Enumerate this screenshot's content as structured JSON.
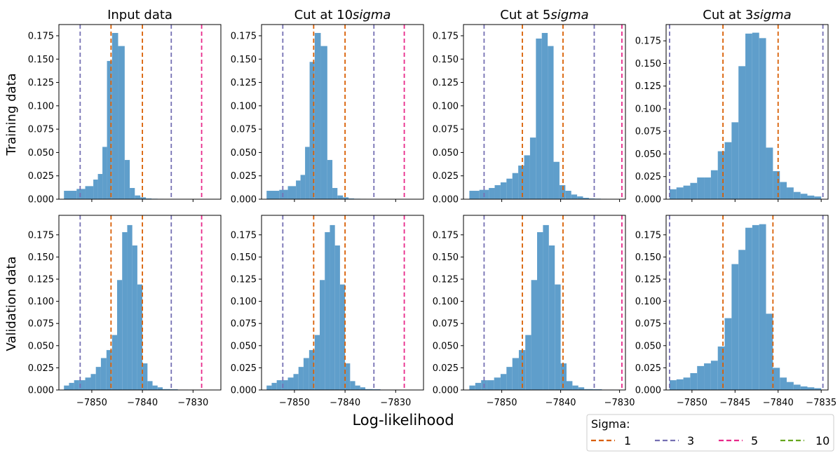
{
  "figure": {
    "xlabel": "Log-likelihood",
    "row_labels": [
      "Training data",
      "Validation data"
    ],
    "legend": {
      "title": "Sigma:",
      "entries": [
        {
          "label": "1",
          "color": "#d95f02"
        },
        {
          "label": "3",
          "color": "#7570b3"
        },
        {
          "label": "5",
          "color": "#e7298a"
        },
        {
          "label": "10",
          "color": "#66a61e"
        }
      ]
    },
    "bar_color": "#5f9ecb"
  },
  "chart_data": [
    {
      "type": "bar",
      "title_prefix": "Input data",
      "title_italic": "",
      "row": 0,
      "col": 0,
      "xlim": [
        -7856.5,
        -7824.5
      ],
      "ylim": [
        0,
        0.187
      ],
      "xticks": [
        -7850,
        -7840,
        -7830
      ],
      "xtick_labels": [
        "−7850",
        "−7840",
        "−7830"
      ],
      "show_xtick_labels": false,
      "yticks": [
        0,
        0.025,
        0.05,
        0.075,
        0.1,
        0.125,
        0.15,
        0.175
      ],
      "ytick_labels": [
        "0.000",
        "0.025",
        "0.050",
        "0.075",
        "0.100",
        "0.125",
        "0.150",
        "0.175"
      ],
      "bin_edges": [
        -7855.5,
        -7853.0,
        -7851.3,
        -7849.7,
        -7848.8,
        -7847.9,
        -7847.0,
        -7846.0,
        -7844.8,
        -7843.5,
        -7842.5,
        -7841.5,
        -7840.4,
        -7839.3,
        -7838.2,
        -7837.0,
        -7835.8,
        -7834.6,
        -7833.4,
        -7832.2,
        -7831.0,
        -7829.9
      ],
      "values": [
        0.009,
        0.011,
        0.014,
        0.021,
        0.027,
        0.056,
        0.148,
        0.178,
        0.164,
        0.042,
        0.012,
        0.004,
        0.002,
        0.0008,
        0.0005,
        0.0004,
        0.0003,
        0.0002,
        0.0001,
        0.0001,
        0.0001
      ],
      "sigma_lines": [
        {
          "sigma": "1",
          "x": -7846.2
        },
        {
          "sigma": "1",
          "x": -7840.0
        },
        {
          "sigma": "3",
          "x": -7852.3
        },
        {
          "sigma": "3",
          "x": -7834.3
        },
        {
          "sigma": "5",
          "x": -7828.3
        }
      ]
    },
    {
      "type": "bar",
      "title_prefix": "Cut at 10",
      "title_italic": "sigma",
      "row": 0,
      "col": 1,
      "xlim": [
        -7856.5,
        -7824.5
      ],
      "ylim": [
        0,
        0.187
      ],
      "xticks": [
        -7850,
        -7840,
        -7830
      ],
      "xtick_labels": [
        "−7850",
        "−7840",
        "−7830"
      ],
      "show_xtick_labels": false,
      "yticks": [
        0,
        0.025,
        0.05,
        0.075,
        0.1,
        0.125,
        0.15,
        0.175
      ],
      "ytick_labels": [
        "0.000",
        "0.025",
        "0.050",
        "0.075",
        "0.100",
        "0.125",
        "0.150",
        "0.175"
      ],
      "bin_edges": [
        -7855.5,
        -7853.0,
        -7851.3,
        -7849.7,
        -7848.8,
        -7847.9,
        -7847.0,
        -7846.0,
        -7844.8,
        -7843.5,
        -7842.5,
        -7841.5,
        -7840.4,
        -7839.3,
        -7838.2,
        -7837.0,
        -7835.8,
        -7834.6,
        -7833.4,
        -7832.2,
        -7831.0,
        -7829.9
      ],
      "values": [
        0.009,
        0.01,
        0.014,
        0.02,
        0.026,
        0.056,
        0.147,
        0.178,
        0.164,
        0.042,
        0.012,
        0.004,
        0.002,
        0.0008,
        0.0005,
        0.0004,
        0.0003,
        0.0002,
        0.0001,
        0.0001,
        0.0001
      ],
      "sigma_lines": [
        {
          "sigma": "1",
          "x": -7846.2
        },
        {
          "sigma": "1",
          "x": -7840.0
        },
        {
          "sigma": "3",
          "x": -7852.3
        },
        {
          "sigma": "3",
          "x": -7834.3
        },
        {
          "sigma": "5",
          "x": -7828.3
        }
      ]
    },
    {
      "type": "bar",
      "title_prefix": "Cut at 5",
      "title_italic": "sigma",
      "row": 0,
      "col": 2,
      "xlim": [
        -7856.5,
        -7829.0
      ],
      "ylim": [
        0,
        0.187
      ],
      "xticks": [
        -7850,
        -7840,
        -7830
      ],
      "xtick_labels": [
        "−7850",
        "−7840",
        "−7830"
      ],
      "show_xtick_labels": false,
      "yticks": [
        0,
        0.025,
        0.05,
        0.075,
        0.1,
        0.125,
        0.15,
        0.175
      ],
      "ytick_labels": [
        "0.000",
        "0.025",
        "0.050",
        "0.075",
        "0.100",
        "0.125",
        "0.150",
        "0.175"
      ],
      "bin_edges": [
        -7855.5,
        -7853.8,
        -7852.2,
        -7851.2,
        -7850.2,
        -7849.2,
        -7848.2,
        -7847.2,
        -7846.2,
        -7845.2,
        -7844.2,
        -7843.2,
        -7842.2,
        -7841.2,
        -7840.2,
        -7839.2,
        -7838.2,
        -7837.2,
        -7836.2,
        -7835.2,
        -7834.2,
        -7833.2,
        -7832.2,
        -7831.2,
        -7830.0
      ],
      "values": [
        0.009,
        0.01,
        0.012,
        0.015,
        0.018,
        0.022,
        0.028,
        0.036,
        0.047,
        0.066,
        0.172,
        0.178,
        0.164,
        0.04,
        0.015,
        0.009,
        0.005,
        0.003,
        0.0015,
        0.0008,
        0.0006,
        0.0004,
        0.0003,
        0.0002
      ],
      "sigma_lines": [
        {
          "sigma": "1",
          "x": -7846.5
        },
        {
          "sigma": "1",
          "x": -7839.6
        },
        {
          "sigma": "3",
          "x": -7853.0
        },
        {
          "sigma": "3",
          "x": -7834.3
        },
        {
          "sigma": "5",
          "x": -7829.6
        }
      ]
    },
    {
      "type": "bar",
      "title_prefix": "Cut at 3",
      "title_italic": "sigma",
      "row": 0,
      "col": 3,
      "xlim": [
        -7853.0,
        -7834.2
      ],
      "ylim": [
        0,
        0.193
      ],
      "xticks": [
        -7850,
        -7845,
        -7840,
        -7835
      ],
      "xtick_labels": [
        "−7850",
        "−7845",
        "−7840",
        "−7835"
      ],
      "show_xtick_labels": false,
      "yticks": [
        0,
        0.025,
        0.05,
        0.075,
        0.1,
        0.125,
        0.15,
        0.175
      ],
      "ytick_labels": [
        "0.000",
        "0.025",
        "0.050",
        "0.075",
        "0.100",
        "0.125",
        "0.150",
        "0.175"
      ],
      "bin_edges": [
        -7852.6,
        -7851.8,
        -7851.0,
        -7850.2,
        -7849.4,
        -7848.6,
        -7847.8,
        -7847.0,
        -7846.2,
        -7845.4,
        -7844.6,
        -7843.8,
        -7843.0,
        -7842.2,
        -7841.4,
        -7840.6,
        -7839.8,
        -7839.0,
        -7838.2,
        -7837.4,
        -7836.6,
        -7835.8,
        -7835.0
      ],
      "values": [
        0.011,
        0.013,
        0.015,
        0.018,
        0.024,
        0.024,
        0.032,
        0.053,
        0.063,
        0.085,
        0.147,
        0.183,
        0.184,
        0.178,
        0.057,
        0.031,
        0.019,
        0.013,
        0.008,
        0.006,
        0.004,
        0.003
      ],
      "sigma_lines": [
        {
          "sigma": "1",
          "x": -7846.4
        },
        {
          "sigma": "1",
          "x": -7840.0
        },
        {
          "sigma": "3",
          "x": -7852.6
        },
        {
          "sigma": "3",
          "x": -7834.8
        }
      ]
    },
    {
      "type": "bar",
      "title_prefix": "",
      "title_italic": "",
      "row": 1,
      "col": 0,
      "xlim": [
        -7856.5,
        -7824.5
      ],
      "ylim": [
        0,
        0.197
      ],
      "xticks": [
        -7850,
        -7840,
        -7830
      ],
      "xtick_labels": [
        "−7850",
        "−7840",
        "−7830"
      ],
      "show_xtick_labels": true,
      "yticks": [
        0,
        0.025,
        0.05,
        0.075,
        0.1,
        0.125,
        0.15,
        0.175
      ],
      "ytick_labels": [
        "0.000",
        "0.025",
        "0.050",
        "0.075",
        "0.100",
        "0.125",
        "0.150",
        "0.175"
      ],
      "bin_edges": [
        -7855.5,
        -7854.5,
        -7853.5,
        -7852.5,
        -7851.3,
        -7850.2,
        -7849.2,
        -7848.2,
        -7847.1,
        -7846.0,
        -7845.0,
        -7844.0,
        -7843.0,
        -7842.0,
        -7841.0,
        -7840.0,
        -7839.0,
        -7838.0,
        -7837.0,
        -7836.0,
        -7834.5,
        -7833.0,
        -7831.0
      ],
      "values": [
        0.005,
        0.008,
        0.011,
        0.011,
        0.014,
        0.018,
        0.026,
        0.036,
        0.045,
        0.062,
        0.124,
        0.178,
        0.186,
        0.163,
        0.119,
        0.03,
        0.01,
        0.005,
        0.003,
        0.001,
        0.0008,
        0.0004
      ],
      "sigma_lines": [
        {
          "sigma": "1",
          "x": -7846.2
        },
        {
          "sigma": "1",
          "x": -7840.0
        },
        {
          "sigma": "3",
          "x": -7852.3
        },
        {
          "sigma": "3",
          "x": -7834.3
        },
        {
          "sigma": "5",
          "x": -7828.3
        }
      ]
    },
    {
      "type": "bar",
      "title_prefix": "",
      "title_italic": "",
      "row": 1,
      "col": 1,
      "xlim": [
        -7856.5,
        -7824.5
      ],
      "ylim": [
        0,
        0.197
      ],
      "xticks": [
        -7850,
        -7840,
        -7830
      ],
      "xtick_labels": [
        "−7850",
        "−7840",
        "−7830"
      ],
      "show_xtick_labels": true,
      "yticks": [
        0,
        0.025,
        0.05,
        0.075,
        0.1,
        0.125,
        0.15,
        0.175
      ],
      "ytick_labels": [
        "0.000",
        "0.025",
        "0.050",
        "0.075",
        "0.100",
        "0.125",
        "0.150",
        "0.175"
      ],
      "bin_edges": [
        -7855.5,
        -7854.5,
        -7853.5,
        -7852.5,
        -7851.3,
        -7850.2,
        -7849.2,
        -7848.2,
        -7847.1,
        -7846.0,
        -7845.0,
        -7844.0,
        -7843.0,
        -7842.0,
        -7841.0,
        -7840.0,
        -7839.0,
        -7838.0,
        -7837.0,
        -7836.0,
        -7834.5,
        -7833.0,
        -7831.0
      ],
      "values": [
        0.005,
        0.008,
        0.011,
        0.011,
        0.014,
        0.018,
        0.026,
        0.036,
        0.045,
        0.062,
        0.124,
        0.178,
        0.186,
        0.163,
        0.119,
        0.03,
        0.01,
        0.005,
        0.003,
        0.001,
        0.0008,
        0.0004
      ],
      "sigma_lines": [
        {
          "sigma": "1",
          "x": -7846.2
        },
        {
          "sigma": "1",
          "x": -7840.0
        },
        {
          "sigma": "3",
          "x": -7852.3
        },
        {
          "sigma": "3",
          "x": -7834.3
        },
        {
          "sigma": "5",
          "x": -7828.3
        }
      ]
    },
    {
      "type": "bar",
      "title_prefix": "",
      "title_italic": "",
      "row": 1,
      "col": 2,
      "xlim": [
        -7856.5,
        -7829.0
      ],
      "ylim": [
        0,
        0.197
      ],
      "xticks": [
        -7850,
        -7840,
        -7830
      ],
      "xtick_labels": [
        "−7850",
        "−7840",
        "−7830"
      ],
      "show_xtick_labels": true,
      "yticks": [
        0,
        0.025,
        0.05,
        0.075,
        0.1,
        0.125,
        0.15,
        0.175
      ],
      "ytick_labels": [
        "0.000",
        "0.025",
        "0.050",
        "0.075",
        "0.100",
        "0.125",
        "0.150",
        "0.175"
      ],
      "bin_edges": [
        -7855.5,
        -7854.5,
        -7853.5,
        -7852.5,
        -7851.3,
        -7850.2,
        -7849.2,
        -7848.2,
        -7847.1,
        -7846.0,
        -7845.0,
        -7844.0,
        -7843.0,
        -7842.0,
        -7841.0,
        -7840.0,
        -7839.0,
        -7838.0,
        -7837.0,
        -7836.0,
        -7834.5,
        -7833.0,
        -7831.0
      ],
      "values": [
        0.005,
        0.008,
        0.011,
        0.011,
        0.014,
        0.018,
        0.026,
        0.036,
        0.045,
        0.062,
        0.124,
        0.178,
        0.186,
        0.163,
        0.119,
        0.03,
        0.01,
        0.005,
        0.003,
        0.001,
        0.0008,
        0.0004
      ],
      "sigma_lines": [
        {
          "sigma": "1",
          "x": -7846.5
        },
        {
          "sigma": "1",
          "x": -7839.6
        },
        {
          "sigma": "3",
          "x": -7853.0
        },
        {
          "sigma": "3",
          "x": -7834.3
        },
        {
          "sigma": "5",
          "x": -7829.6
        }
      ]
    },
    {
      "type": "bar",
      "title_prefix": "",
      "title_italic": "",
      "row": 1,
      "col": 3,
      "xlim": [
        -7853.0,
        -7834.2
      ],
      "ylim": [
        0,
        0.197
      ],
      "xticks": [
        -7850,
        -7845,
        -7840,
        -7835
      ],
      "xtick_labels": [
        "−7850",
        "−7845",
        "−7840",
        "−7835"
      ],
      "show_xtick_labels": true,
      "yticks": [
        0,
        0.025,
        0.05,
        0.075,
        0.1,
        0.125,
        0.15,
        0.175
      ],
      "ytick_labels": [
        "0.000",
        "0.025",
        "0.050",
        "0.075",
        "0.100",
        "0.125",
        "0.150",
        "0.175"
      ],
      "bin_edges": [
        -7852.6,
        -7851.8,
        -7851.0,
        -7850.2,
        -7849.4,
        -7848.6,
        -7847.8,
        -7847.0,
        -7846.2,
        -7845.4,
        -7844.6,
        -7843.8,
        -7843.0,
        -7842.2,
        -7841.4,
        -7840.6,
        -7839.8,
        -7839.0,
        -7838.2,
        -7837.4,
        -7836.6,
        -7835.8,
        -7835.0
      ],
      "values": [
        0.011,
        0.012,
        0.014,
        0.019,
        0.027,
        0.03,
        0.033,
        0.049,
        0.081,
        0.142,
        0.158,
        0.183,
        0.186,
        0.187,
        0.086,
        0.025,
        0.014,
        0.009,
        0.006,
        0.004,
        0.003,
        0.002
      ],
      "sigma_lines": [
        {
          "sigma": "1",
          "x": -7846.4
        },
        {
          "sigma": "1",
          "x": -7840.6
        },
        {
          "sigma": "3",
          "x": -7852.6
        },
        {
          "sigma": "3",
          "x": -7834.8
        }
      ]
    }
  ]
}
